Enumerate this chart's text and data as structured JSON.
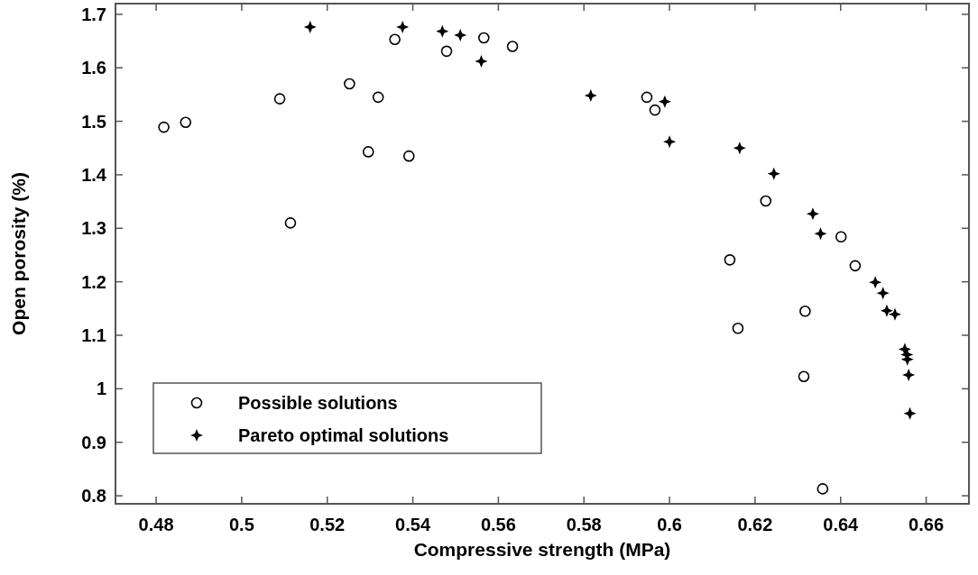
{
  "chart_data": {
    "type": "scatter",
    "xlabel": "Compressive strength (MPa)",
    "ylabel": "Open porosity (%)",
    "xlim": [
      0.4705,
      0.67
    ],
    "xticks": [
      0.48,
      0.5,
      0.52,
      0.54,
      0.56,
      0.58,
      0.6,
      0.62,
      0.64,
      0.66
    ],
    "ylim": [
      0.785,
      1.72
    ],
    "yticks": [
      0.8,
      0.9,
      1,
      1.1,
      1.2,
      1.3,
      1.4,
      1.5,
      1.6,
      1.7
    ],
    "grid": false,
    "legend": "bottom left",
    "series": [
      {
        "name": "Possible solutions",
        "color": "#000000",
        "marker": "circle",
        "x": [
          0.4818,
          0.4869,
          0.5089,
          0.5114,
          0.5252,
          0.5319,
          0.5296,
          0.5391,
          0.5358,
          0.5479,
          0.5566,
          0.5633,
          0.5947,
          0.5966,
          0.6225,
          0.6401,
          0.6434,
          0.6141,
          0.6317,
          0.616,
          0.6314,
          0.6358
        ],
        "values": [
          1.489,
          1.498,
          1.542,
          1.31,
          1.57,
          1.545,
          1.443,
          1.435,
          1.653,
          1.631,
          1.656,
          1.64,
          1.545,
          1.521,
          1.351,
          1.284,
          1.23,
          1.241,
          1.145,
          1.113,
          1.023,
          0.813
        ]
      },
      {
        "name": "Pareto optimal solutions",
        "color": "#000000",
        "marker": "star",
        "x": [
          0.516,
          0.5376,
          0.5469,
          0.5511,
          0.556,
          0.5816,
          0.5989,
          0.6,
          0.6164,
          0.6244,
          0.6335,
          0.6353,
          0.6481,
          0.6499,
          0.6508,
          0.6527,
          0.655,
          0.6555,
          0.6556,
          0.6559,
          0.6562
        ],
        "values": [
          1.676,
          1.676,
          1.668,
          1.661,
          1.612,
          1.548,
          1.537,
          1.462,
          1.45,
          1.402,
          1.327,
          1.29,
          1.199,
          1.179,
          1.146,
          1.139,
          1.074,
          1.064,
          1.055,
          1.026,
          0.954
        ]
      }
    ]
  }
}
